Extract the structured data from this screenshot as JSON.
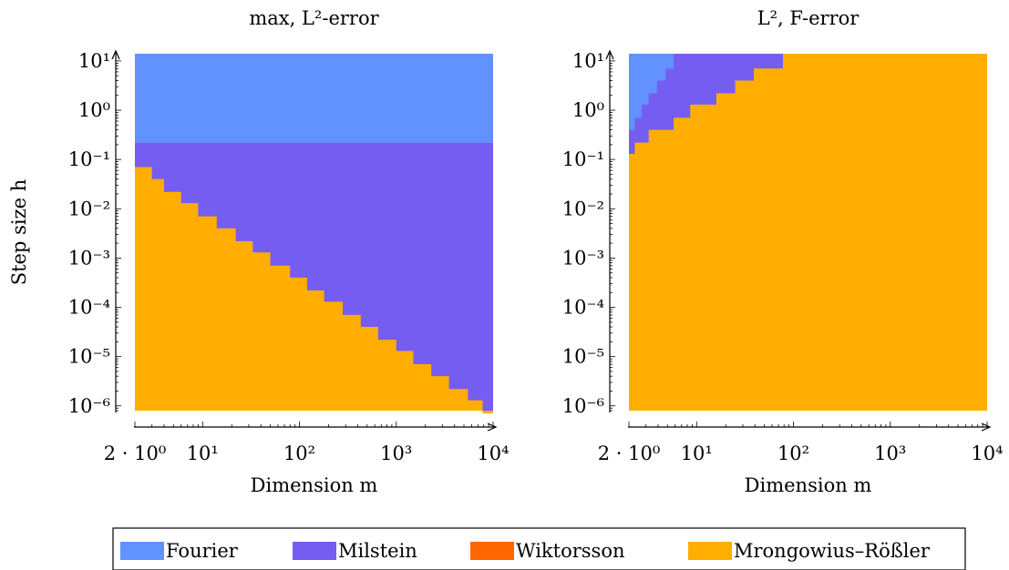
{
  "chart_data": [
    {
      "type": "heatmap",
      "title": "max, L²-error",
      "xlabel": "Dimension m",
      "ylabel": "Step size h",
      "xscale": "log",
      "yscale": "log",
      "xlim": [
        2,
        10000
      ],
      "ylim": [
        8e-07,
        14
      ],
      "x_ticks": [
        {
          "value": 2,
          "label": "2 · 10⁰"
        },
        {
          "value": 10,
          "label": "10¹"
        },
        {
          "value": 100,
          "label": "10²"
        },
        {
          "value": 1000,
          "label": "10³"
        },
        {
          "value": 10000,
          "label": "10⁴"
        }
      ],
      "y_ticks": [
        {
          "value": 10,
          "label": "10¹"
        },
        {
          "value": 1,
          "label": "10⁰"
        },
        {
          "value": 0.1,
          "label": "10⁻¹"
        },
        {
          "value": 0.01,
          "label": "10⁻²"
        },
        {
          "value": 0.001,
          "label": "10⁻³"
        },
        {
          "value": 0.0001,
          "label": "10⁻⁴"
        },
        {
          "value": 1e-05,
          "label": "10⁻⁵"
        },
        {
          "value": 1e-06,
          "label": "10⁻⁶"
        }
      ],
      "regions": [
        {
          "method": "Fourier",
          "h_from": 0.22,
          "h_to": 14,
          "m_from": 2,
          "m_to": 10000
        },
        {
          "method": "Milstein",
          "h_from": 8e-07,
          "h_to": 0.22,
          "m_from": 2,
          "m_to": 10000
        }
      ],
      "boundary_method": "Mrongowius–Rößler",
      "boundary": {
        "m": [
          2,
          3,
          4,
          6,
          9,
          14,
          22,
          33,
          50,
          80,
          120,
          180,
          280,
          430,
          650,
          1000,
          1500,
          2300,
          3500,
          5500,
          7800
        ],
        "h": [
          0.07,
          0.04,
          0.022,
          0.013,
          0.007,
          0.004,
          0.0022,
          0.0013,
          0.0007,
          0.0004,
          0.00022,
          0.00013,
          7e-05,
          4e-05,
          2.2e-05,
          1.3e-05,
          7e-06,
          4e-06,
          2.2e-06,
          1.3e-06,
          7e-07
        ]
      }
    },
    {
      "type": "heatmap",
      "title": "L², F-error",
      "xlabel": "Dimension m",
      "ylabel": "",
      "xscale": "log",
      "yscale": "log",
      "xlim": [
        2,
        10000
      ],
      "ylim": [
        8e-07,
        14
      ],
      "x_ticks": [
        {
          "value": 2,
          "label": "2 · 10⁰"
        },
        {
          "value": 10,
          "label": "10¹"
        },
        {
          "value": 100,
          "label": "10²"
        },
        {
          "value": 1000,
          "label": "10³"
        },
        {
          "value": 10000,
          "label": "10⁴"
        }
      ],
      "y_ticks": [
        {
          "value": 10,
          "label": "10¹"
        },
        {
          "value": 1,
          "label": "10⁰"
        },
        {
          "value": 0.1,
          "label": "10⁻¹"
        },
        {
          "value": 0.01,
          "label": "10⁻²"
        },
        {
          "value": 0.001,
          "label": "10⁻³"
        },
        {
          "value": 0.0001,
          "label": "10⁻⁴"
        },
        {
          "value": 1e-05,
          "label": "10⁻⁵"
        },
        {
          "value": 1e-06,
          "label": "10⁻⁶"
        }
      ],
      "regions": [
        {
          "method": "Mrongowius–Rößler",
          "h_from": 8e-07,
          "h_to": 14,
          "m_from": 2,
          "m_to": 10000
        }
      ],
      "milstein_upper": {
        "m": [
          2,
          2.3,
          2.7,
          3.2,
          3.9,
          4.8,
          5.8,
          7,
          8.6,
          10.5,
          13,
          16,
          20,
          25,
          31,
          39,
          49,
          62,
          78,
          98
        ],
        "h": [
          0.13,
          0.22,
          0.4,
          0.4,
          0.7,
          0.7,
          1.3,
          1.3,
          2.2,
          2.2,
          4,
          4,
          7,
          7,
          14,
          14,
          14,
          14,
          14,
          14
        ]
      },
      "milstein_lower": {
        "m": [
          2,
          2.3,
          2.7,
          3.2,
          3.9,
          4.8,
          5.8,
          7,
          8.6,
          10.5,
          13,
          16,
          20,
          25,
          31,
          39,
          49,
          62,
          78,
          98,
          120
        ],
        "h": [
          0.13,
          0.22,
          0.22,
          0.4,
          0.4,
          0.4,
          0.7,
          0.7,
          1.3,
          1.3,
          1.3,
          2.2,
          2.2,
          4,
          4,
          7,
          7,
          7,
          14,
          14,
          14
        ]
      },
      "fourier_lower": {
        "m": [
          2,
          2.3,
          2.7,
          3.2,
          3.9,
          4.8,
          5.8,
          7
        ],
        "h": [
          0.4,
          0.7,
          1.3,
          2.2,
          4,
          7,
          14,
          14
        ]
      }
    }
  ],
  "legend": [
    {
      "label": "Fourier",
      "color": "#6192ff"
    },
    {
      "label": "Milstein",
      "color": "#755df1"
    },
    {
      "label": "Wiktorsson",
      "color": "#ff6600"
    },
    {
      "label": "Mrongowius–Rößler",
      "color": "#ffae00"
    }
  ],
  "colors": {
    "Fourier": "#6192ff",
    "Milstein": "#755df1",
    "Wiktorsson": "#ff6600",
    "Mrongowius–Rößler": "#ffae00"
  }
}
